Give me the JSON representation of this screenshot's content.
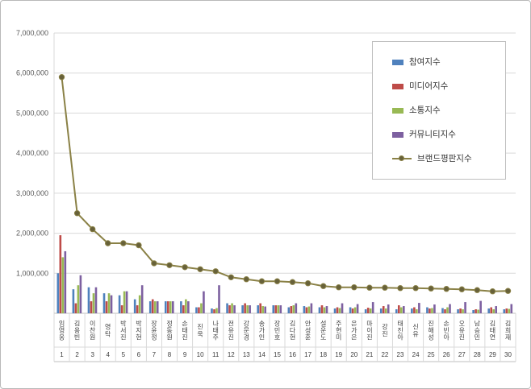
{
  "chart_data": {
    "type": "bar+line",
    "categories": [
      "임영웅",
      "김용빈",
      "이찬원",
      "영탁",
      "박서진",
      "박지현",
      "장윤정",
      "정동원",
      "손태진",
      "진욱",
      "나태주",
      "전유진",
      "강문경",
      "송가인",
      "장민호",
      "김다현",
      "안성훈",
      "설운도",
      "주현미",
      "은가은",
      "마이진",
      "강진",
      "태진아",
      "신유",
      "진해성",
      "손빈아",
      "오유진",
      "남승민",
      "김태연",
      "김희재"
    ],
    "ranks": [
      "1",
      "2",
      "3",
      "4",
      "5",
      "6",
      "7",
      "8",
      "9",
      "10",
      "11",
      "12",
      "13",
      "14",
      "15",
      "16",
      "17",
      "18",
      "19",
      "20",
      "21",
      "22",
      "23",
      "24",
      "25",
      "26",
      "27",
      "28",
      "29",
      "30"
    ],
    "series": [
      {
        "name": "참여지수",
        "type": "bar",
        "color": "#4f81bd",
        "values": [
          1000000,
          600000,
          650000,
          500000,
          450000,
          350000,
          300000,
          300000,
          300000,
          150000,
          120000,
          250000,
          200000,
          200000,
          200000,
          150000,
          180000,
          150000,
          120000,
          150000,
          100000,
          120000,
          100000,
          120000,
          150000,
          130000,
          100000,
          80000,
          120000,
          100000
        ]
      },
      {
        "name": "미디어지수",
        "type": "bar",
        "color": "#be4b48",
        "values": [
          1950000,
          250000,
          300000,
          300000,
          200000,
          200000,
          350000,
          300000,
          200000,
          150000,
          100000,
          200000,
          250000,
          250000,
          200000,
          180000,
          150000,
          200000,
          150000,
          120000,
          140000,
          180000,
          200000,
          150000,
          120000,
          100000,
          120000,
          100000,
          150000,
          120000
        ]
      },
      {
        "name": "소통지수",
        "type": "bar",
        "color": "#98b954",
        "values": [
          1400000,
          700000,
          500000,
          500000,
          550000,
          450000,
          300000,
          300000,
          350000,
          250000,
          130000,
          250000,
          200000,
          180000,
          200000,
          200000,
          170000,
          150000,
          130000,
          150000,
          120000,
          120000,
          150000,
          100000,
          130000,
          150000,
          100000,
          90000,
          100000,
          110000
        ]
      },
      {
        "name": "커뮤니티지수",
        "type": "bar",
        "color": "#7d60a0",
        "values": [
          1550000,
          950000,
          650000,
          450000,
          550000,
          700000,
          300000,
          300000,
          300000,
          550000,
          700000,
          200000,
          200000,
          170000,
          200000,
          250000,
          250000,
          180000,
          250000,
          230000,
          280000,
          220000,
          180000,
          260000,
          220000,
          230000,
          280000,
          310000,
          180000,
          230000
        ]
      },
      {
        "name": "브랜드평판지수",
        "type": "line",
        "color": "#8a8146",
        "marker_fill": "#67613a",
        "values": [
          5900000,
          2500000,
          2100000,
          1750000,
          1750000,
          1700000,
          1250000,
          1200000,
          1150000,
          1100000,
          1050000,
          900000,
          850000,
          800000,
          800000,
          780000,
          750000,
          680000,
          650000,
          650000,
          640000,
          640000,
          630000,
          630000,
          620000,
          610000,
          600000,
          580000,
          550000,
          560000
        ]
      }
    ],
    "ylim": [
      0,
      7000000
    ],
    "ytick_step": 1000000,
    "ytick_labels": [
      "1,000,000",
      "2,000,000",
      "3,000,000",
      "4,000,000",
      "5,000,000",
      "6,000,000",
      "7,000,000"
    ],
    "grid": true,
    "legend_position": "upper-right-inside",
    "axis_color": "#bfbfbf",
    "grid_color": "#d9d9d9",
    "label_color": "#595959",
    "category_label_color": "#404040"
  }
}
